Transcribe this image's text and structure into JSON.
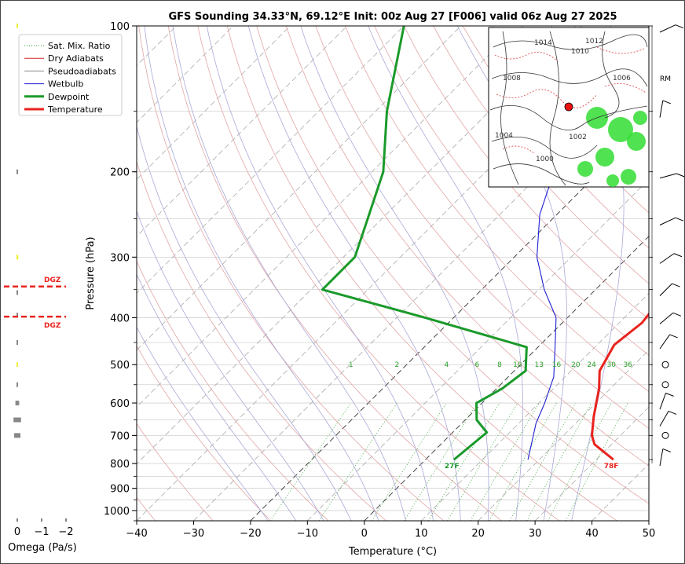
{
  "chart_data": {
    "type": "line",
    "title": "GFS Sounding 34.33°N, 69.12°E Init: 00z Aug 27 [F006] valid 06z Aug 27 2025",
    "xlabel": "Temperature (°C)",
    "ylabel": "Pressure (hPa)",
    "x_ticks": [
      "−40",
      "−30",
      "−20",
      "−10",
      "0",
      "10",
      "20",
      "30",
      "40",
      "50"
    ],
    "x_tick_values": [
      -40,
      -30,
      -20,
      -10,
      0,
      10,
      20,
      30,
      40,
      50
    ],
    "y_tick_labels": [
      "100",
      "200",
      "300",
      "400",
      "500",
      "600",
      "700",
      "800",
      "900",
      "1000"
    ],
    "y_tick_values": [
      100,
      200,
      300,
      400,
      500,
      600,
      700,
      800,
      900,
      1000
    ],
    "xlim": [
      -40,
      50
    ],
    "ylim": [
      1050,
      100
    ],
    "y_scale": "log",
    "skew": "45 degrees",
    "legend_position": "top-left",
    "legend": [
      {
        "name": "Sat. Mix. Ratio",
        "color": "#2ca02c",
        "style": "dotted"
      },
      {
        "name": "Dry Adiabats",
        "color": "#d62728",
        "style": "solid"
      },
      {
        "name": "Pseudoadiabats",
        "color": "#888888",
        "style": "solid"
      },
      {
        "name": "Wetbulb",
        "color": "#1f1fd0",
        "style": "solid"
      },
      {
        "name": "Dewpoint",
        "color": "#1a9a2a",
        "style": "solid"
      },
      {
        "name": "Temperature",
        "color": "#e8231d",
        "style": "solid"
      }
    ],
    "series": [
      {
        "name": "Temperature",
        "color": "#e8231d",
        "points": [
          [
            33,
            785
          ],
          [
            27,
            730
          ],
          [
            25,
            700
          ],
          [
            22,
            640
          ],
          [
            18,
            560
          ],
          [
            15,
            515
          ],
          [
            13,
            455
          ],
          [
            14,
            410
          ],
          [
            13,
            360
          ],
          [
            6,
            300
          ],
          [
            -2,
            245
          ],
          [
            -7,
            200
          ],
          [
            -12,
            150
          ],
          [
            -13,
            135
          ],
          [
            -16,
            100
          ]
        ]
      },
      {
        "name": "Dewpoint",
        "color": "#1a9a2a",
        "points": [
          [
            5,
            785
          ],
          [
            6,
            690
          ],
          [
            2,
            650
          ],
          [
            -1,
            600
          ],
          [
            1,
            560
          ],
          [
            2,
            515
          ],
          [
            -2,
            460
          ],
          [
            -25,
            400
          ],
          [
            -48,
            350
          ],
          [
            -48,
            300
          ],
          [
            -52,
            255
          ],
          [
            -58,
            200
          ],
          [
            -68,
            150
          ],
          [
            -80,
            100
          ]
        ]
      },
      {
        "name": "Wetbulb",
        "color": "#1f1fd0",
        "points": [
          [
            18,
            785
          ],
          [
            13,
            660
          ],
          [
            11,
            600
          ],
          [
            8,
            530
          ],
          [
            3,
            460
          ],
          [
            -2,
            400
          ],
          [
            -9,
            350
          ],
          [
            -16,
            300
          ],
          [
            -23,
            245
          ],
          [
            -28,
            200
          ],
          [
            -31,
            150
          ]
        ]
      }
    ],
    "dry_adiabats_theta_K": [
      -40,
      -30,
      -20,
      -10,
      0,
      10,
      20,
      30,
      40,
      50,
      60,
      70,
      80,
      90,
      100,
      110,
      120,
      130,
      140,
      150,
      160,
      170
    ],
    "pseudoadiabats_C": [
      -20,
      -15,
      -10,
      -5,
      0,
      5,
      10,
      15,
      20,
      25,
      30,
      35
    ],
    "mixing_ratio_lines": [
      "1",
      "2",
      "4",
      "6",
      "8",
      "10",
      "13",
      "16",
      "20",
      "24",
      "30",
      "36"
    ],
    "annotations": {
      "surface_temperature": "78F",
      "surface_dewpoint": "27F",
      "rm_label": "RM",
      "dgz_label": "DGZ"
    },
    "omega": {
      "xlabel": "Omega (Pa/s)",
      "x_ticks": [
        "0",
        "−1",
        "−2"
      ],
      "dgz_pressures": [
        345,
        398
      ],
      "bars": [
        {
          "p": 100,
          "value": 0.1,
          "color": "#eeee40"
        },
        {
          "p": 200,
          "value": 0.05,
          "color": "#888888"
        },
        {
          "p": 300,
          "value": 0.15,
          "color": "#eeee40"
        },
        {
          "p": 355,
          "value": 0.05,
          "color": "#888888"
        },
        {
          "p": 395,
          "value": 0.05,
          "color": "#888888"
        },
        {
          "p": 450,
          "value": 0.1,
          "color": "#888888"
        },
        {
          "p": 500,
          "value": 0.1,
          "color": "#eeee40"
        },
        {
          "p": 550,
          "value": 0.05,
          "color": "#888888"
        },
        {
          "p": 600,
          "value": 0.3,
          "color": "#888888"
        },
        {
          "p": 650,
          "value": 0.6,
          "color": "#888888"
        },
        {
          "p": 700,
          "value": 0.5,
          "color": "#888888"
        }
      ]
    },
    "wind_barbs": [
      {
        "p": 100,
        "kind": "barb"
      },
      {
        "p": 150,
        "kind": "barb"
      },
      {
        "p": 200,
        "kind": "barb"
      },
      {
        "p": 250,
        "kind": "barb"
      },
      {
        "p": 300,
        "kind": "barb"
      },
      {
        "p": 350,
        "kind": "barb"
      },
      {
        "p": 400,
        "kind": "barb"
      },
      {
        "p": 450,
        "kind": "barb"
      },
      {
        "p": 500,
        "kind": "calm"
      },
      {
        "p": 550,
        "kind": "calm"
      },
      {
        "p": 600,
        "kind": "barb"
      },
      {
        "p": 650,
        "kind": "barb"
      },
      {
        "p": 700,
        "kind": "calm"
      },
      {
        "p": 785,
        "kind": "barb"
      }
    ],
    "inset_map": {
      "contour_labels": [
        "1014",
        "1012",
        "1010",
        "1008",
        "1006",
        "1004",
        "1002",
        "1000"
      ],
      "marker": "red dot at sounding location"
    }
  }
}
